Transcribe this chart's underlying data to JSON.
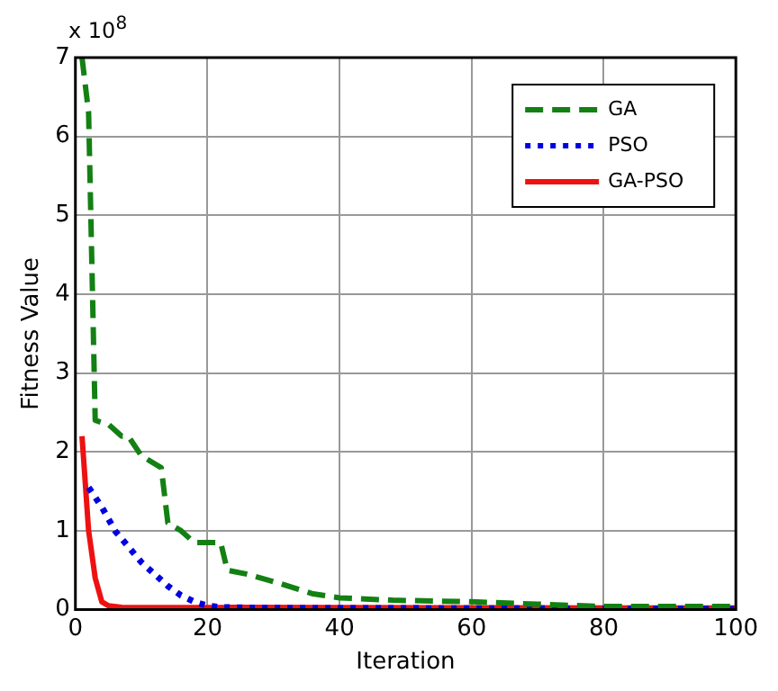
{
  "chart_data": {
    "type": "line",
    "xlabel": "Iteration",
    "ylabel": "Fitness Value",
    "annotations": [
      "x 10$^{8}$"
    ],
    "xlim": [
      0,
      100
    ],
    "xticks": [
      0,
      20,
      40,
      60,
      80,
      100
    ],
    "ylim": [
      0,
      7
    ],
    "yticks": [
      0,
      1,
      2,
      3,
      4,
      5,
      6,
      7
    ],
    "grid": true,
    "legend": "top right",
    "marker": "none",
    "series": [
      {
        "name": "GA",
        "color": "#138013",
        "line_style": "dashed",
        "x": [
          1,
          2,
          3,
          5,
          7,
          8,
          10,
          13,
          14,
          16,
          18,
          22,
          23,
          26,
          29,
          31,
          36,
          40,
          48,
          60,
          70,
          80,
          90,
          100
        ],
        "values": [
          7.0,
          6.3,
          2.4,
          2.35,
          2.2,
          2.2,
          1.95,
          1.8,
          1.1,
          1.0,
          0.85,
          0.85,
          0.5,
          0.45,
          0.38,
          0.33,
          0.2,
          0.15,
          0.12,
          0.1,
          0.07,
          0.04,
          0.04,
          0.04
        ]
      },
      {
        "name": "PSO",
        "color": "#0000e0",
        "line_style": "dotted",
        "x": [
          2,
          4,
          6,
          8,
          10,
          12,
          14,
          16,
          18,
          20,
          22,
          30,
          100
        ],
        "values": [
          1.55,
          1.3,
          1.0,
          0.8,
          0.6,
          0.45,
          0.3,
          0.18,
          0.1,
          0.05,
          0.03,
          0.02,
          0.01
        ]
      },
      {
        "name": "GA-PSO",
        "color": "#ee1111",
        "line_style": "solid",
        "x": [
          1,
          2,
          3,
          4,
          5,
          7,
          100
        ],
        "values": [
          2.2,
          1.0,
          0.4,
          0.1,
          0.05,
          0.03,
          0.02
        ]
      }
    ]
  }
}
